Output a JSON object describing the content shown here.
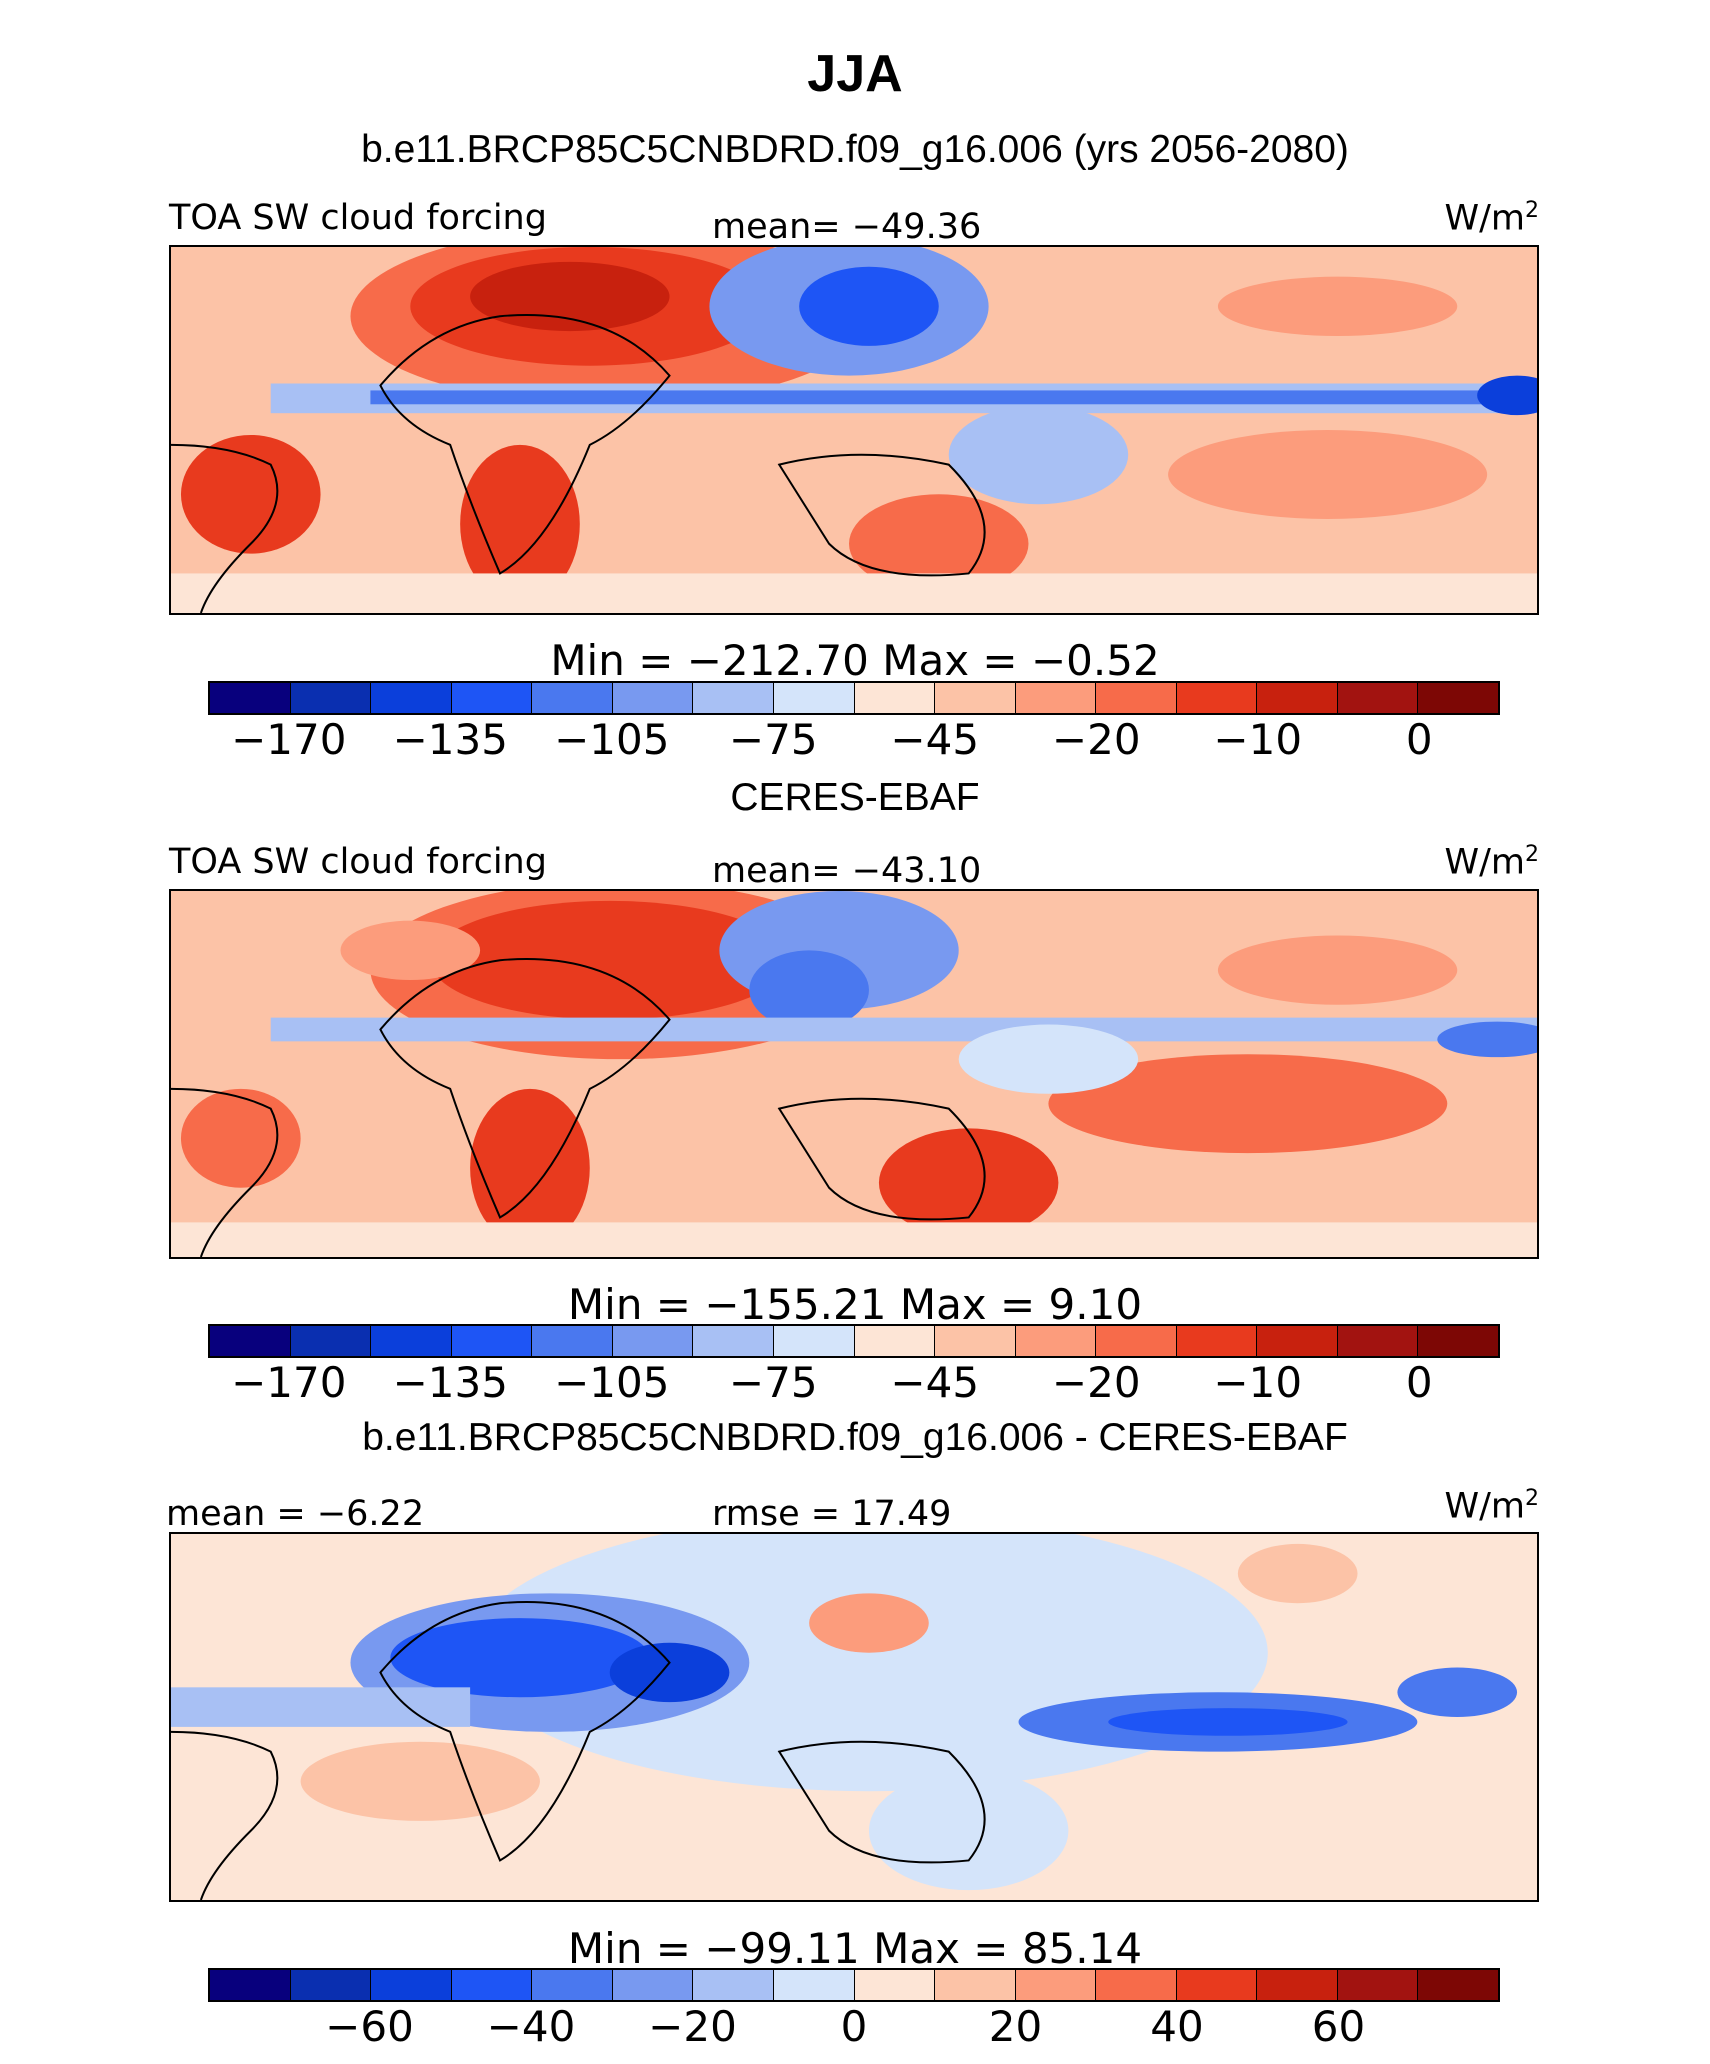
{
  "figure": {
    "title": "JJA"
  },
  "colors": {
    "palette": [
      "#08007d",
      "#0a2fb0",
      "#0b3fdb",
      "#1e55f5",
      "#4a78ef",
      "#7899f0",
      "#a8c0f4",
      "#d4e4fa",
      "#fde5d6",
      "#fcc3a7",
      "#fc9c7c",
      "#f76b4a",
      "#e83a1e",
      "#c8210e",
      "#a21310",
      "#7d0705"
    ]
  },
  "panels": [
    {
      "header": "b.e11.BRCP85C5CNBDRD.f09_g16.006 (yrs 2056-2080)",
      "left_label": "TOA SW cloud forcing",
      "center_label": "mean=  −49.36",
      "units": "W/m",
      "units_sup": "2",
      "minmax": "Min  =  −212.70  Max  =    −0.52",
      "ticks": [
        "−170",
        "−135",
        "−105",
        "−75",
        "−45",
        "−20",
        "−10",
        "0"
      ]
    },
    {
      "header": "CERES-EBAF",
      "left_label": "TOA SW cloud forcing",
      "center_label": "mean=  −43.10",
      "units": "W/m",
      "units_sup": "2",
      "minmax": "Min  =  −155.21  Max  =     9.10",
      "ticks": [
        "−170",
        "−135",
        "−105",
        "−75",
        "−45",
        "−20",
        "−10",
        "0"
      ]
    },
    {
      "header": "b.e11.BRCP85C5CNBDRD.f09_g16.006 - CERES-EBAF",
      "left_label": "mean  =   −6.22",
      "center_label": "rmse  =   17.49",
      "units": "W/m",
      "units_sup": "2",
      "minmax": "Min  =  −99.11  Max  =   85.14",
      "ticks": [
        "−60",
        "−40",
        "−20",
        "0",
        "20",
        "40",
        "60"
      ]
    }
  ],
  "chart_data": [
    {
      "type": "heatmap",
      "title": "b.e11.BRCP85C5CNBDRD.f09_g16.006 (yrs 2056-2080)",
      "variable": "TOA SW cloud forcing",
      "units": "W/m2",
      "mean": -49.36,
      "min": -212.7,
      "max": -0.52,
      "colorbar_ticks": [
        -170,
        -135,
        -105,
        -75,
        -45,
        -20,
        -10,
        0
      ]
    },
    {
      "type": "heatmap",
      "title": "CERES-EBAF",
      "variable": "TOA SW cloud forcing",
      "units": "W/m2",
      "mean": -43.1,
      "min": -155.21,
      "max": 9.1,
      "colorbar_ticks": [
        -170,
        -135,
        -105,
        -75,
        -45,
        -20,
        -10,
        0
      ]
    },
    {
      "type": "heatmap",
      "title": "b.e11.BRCP85C5CNBDRD.f09_g16.006 - CERES-EBAF",
      "units": "W/m2",
      "mean": -6.22,
      "rmse": 17.49,
      "min": -99.11,
      "max": 85.14,
      "colorbar_ticks": [
        -60,
        -40,
        -20,
        0,
        20,
        40,
        60
      ]
    }
  ]
}
